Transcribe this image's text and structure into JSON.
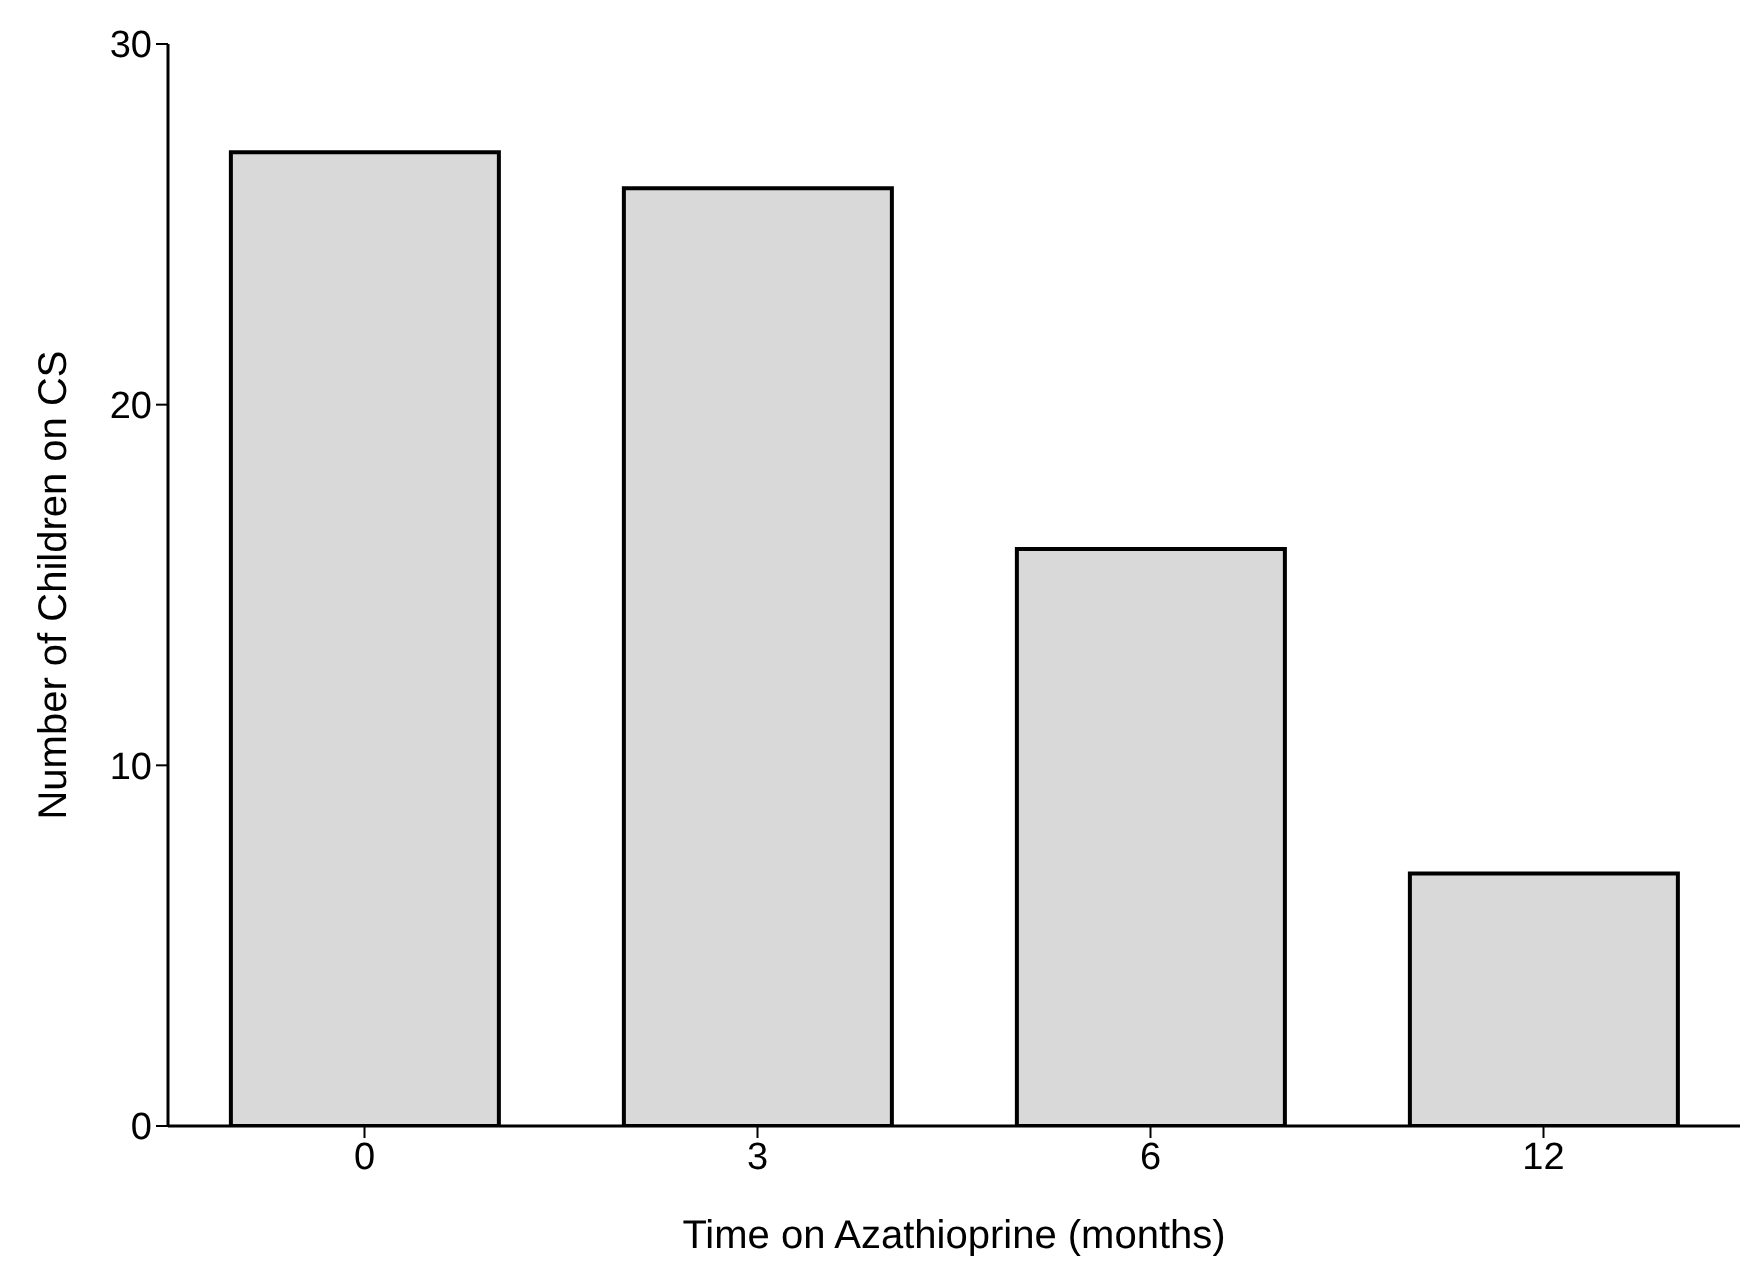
{
  "chart_data": {
    "type": "bar",
    "xlabel": "Time on Azathioprine (months)",
    "ylabel": "Number of Children on CS",
    "categories": [
      "0",
      "3",
      "6",
      "12"
    ],
    "values": [
      27,
      26,
      16,
      7
    ],
    "color": "#d9d9d9",
    "ylim": [
      0,
      30
    ],
    "yticks": [
      0,
      10,
      20,
      30
    ],
    "grid": false,
    "legend": false
  }
}
